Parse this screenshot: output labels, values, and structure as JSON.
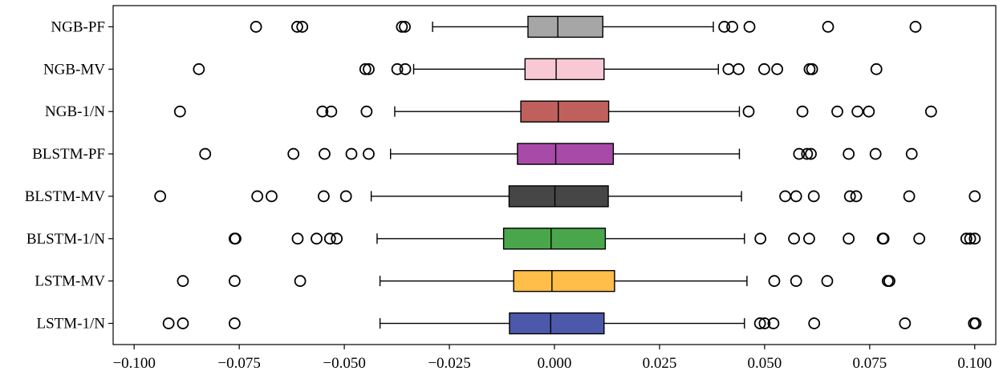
{
  "chart_data": {
    "type": "boxplot",
    "orientation": "horizontal",
    "title": "",
    "xlabel": "",
    "ylabel": "",
    "xlim": [
      -0.105,
      0.105
    ],
    "x_ticks": [
      {
        "value": -0.1,
        "label": "−0.100"
      },
      {
        "value": -0.075,
        "label": "−0.075"
      },
      {
        "value": -0.05,
        "label": "−0.050"
      },
      {
        "value": -0.025,
        "label": "−0.025"
      },
      {
        "value": 0.0,
        "label": "0.000"
      },
      {
        "value": 0.025,
        "label": "0.025"
      },
      {
        "value": 0.05,
        "label": "0.050"
      },
      {
        "value": 0.075,
        "label": "0.075"
      },
      {
        "value": 0.1,
        "label": "0.100"
      }
    ],
    "grid": false,
    "boxes": [
      {
        "label": "NGB-PF",
        "color": "#a6a6a6",
        "whisker_low": -0.029,
        "q1": -0.0063,
        "median": 0.0008,
        "q3": 0.0115,
        "whisker_high": 0.0378,
        "outliers": [
          -0.071,
          -0.0612,
          -0.06,
          -0.0363,
          -0.0356,
          0.0404,
          0.0423,
          0.0464,
          0.0651,
          0.0859
        ]
      },
      {
        "label": "NGB-MV",
        "color": "#f8c8d4",
        "whisker_low": -0.0335,
        "q1": -0.007,
        "median": 0.0004,
        "q3": 0.0118,
        "whisker_high": 0.039,
        "outliers": [
          -0.0846,
          -0.045,
          -0.0442,
          -0.0374,
          -0.0355,
          0.0414,
          0.0438,
          0.0499,
          0.053,
          0.0607,
          0.0613,
          0.0766
        ]
      },
      {
        "label": "NGB-1/N",
        "color": "#c0605c",
        "whisker_low": -0.038,
        "q1": -0.008,
        "median": 0.0009,
        "q3": 0.0129,
        "whisker_high": 0.044,
        "outliers": [
          -0.0891,
          -0.0552,
          -0.0531,
          -0.0447,
          0.0462,
          0.059,
          0.0673,
          0.0721,
          0.0748,
          0.0896
        ]
      },
      {
        "label": "BLSTM-PF",
        "color": "#a84aa8",
        "whisker_low": -0.039,
        "q1": -0.0088,
        "median": 0.0003,
        "q3": 0.014,
        "whisker_high": 0.044,
        "outliers": [
          -0.0831,
          -0.0621,
          -0.0547,
          -0.0483,
          -0.0442,
          0.0582,
          0.0601,
          0.061,
          0.07,
          0.0764,
          0.085
        ]
      },
      {
        "label": "BLSTM-MV",
        "color": "#464646",
        "whisker_low": -0.0436,
        "q1": -0.0108,
        "median": 0.0001,
        "q3": 0.0128,
        "whisker_high": 0.0445,
        "outliers": [
          -0.0938,
          -0.0707,
          -0.0673,
          -0.0549,
          -0.0496,
          0.0549,
          0.0575,
          0.0617,
          0.0703,
          0.0718,
          0.0844,
          0.1
        ]
      },
      {
        "label": "BLSTM-1/N",
        "color": "#4aa64a",
        "whisker_low": -0.0422,
        "q1": -0.0121,
        "median": -0.0008,
        "q3": 0.0121,
        "whisker_high": 0.0452,
        "outliers": [
          -0.0761,
          -0.0759,
          -0.0611,
          -0.0566,
          -0.0534,
          -0.0518,
          0.049,
          0.057,
          0.0606,
          0.07,
          0.0781,
          0.0783,
          0.0868,
          0.098,
          0.0989,
          0.1
        ]
      },
      {
        "label": "LSTM-MV",
        "color": "#ffbd4a",
        "whisker_low": -0.0415,
        "q1": -0.0097,
        "median": -0.0006,
        "q3": 0.0143,
        "whisker_high": 0.0458,
        "outliers": [
          -0.0884,
          -0.0761,
          -0.0605,
          0.0523,
          0.0575,
          0.0649,
          0.0793,
          0.0797
        ]
      },
      {
        "label": "LSTM-1/N",
        "color": "#4c58aa",
        "whisker_low": -0.0415,
        "q1": -0.0107,
        "median": -0.0009,
        "q3": 0.0118,
        "whisker_high": 0.0452,
        "outliers": [
          -0.0918,
          -0.0884,
          -0.0761,
          0.0489,
          0.05,
          0.0521,
          0.0618,
          0.0834,
          0.0998,
          0.1002
        ]
      }
    ]
  }
}
